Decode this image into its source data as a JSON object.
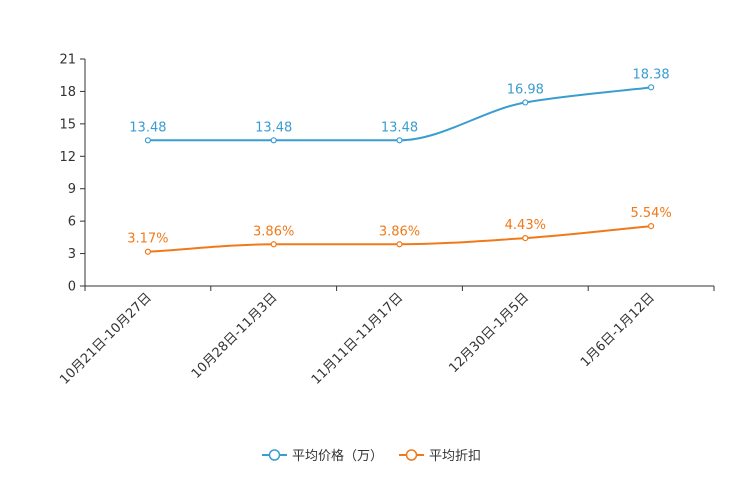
{
  "chart_data": {
    "type": "line",
    "categories": [
      "10月21日-10月27日",
      "10月28日-11月3日",
      "11月11日-11月17日",
      "12月30日-1月5日",
      "1月6日-1月12日"
    ],
    "series": [
      {
        "name": "平均价格（万）",
        "values": [
          13.48,
          13.48,
          13.48,
          16.98,
          18.38
        ],
        "labels": [
          "13.48",
          "13.48",
          "13.48",
          "16.98",
          "18.38"
        ],
        "color": "#3a9dd0"
      },
      {
        "name": "平均折扣",
        "values": [
          3.17,
          3.86,
          3.86,
          4.43,
          5.54
        ],
        "labels": [
          "3.17%",
          "3.86%",
          "3.86%",
          "4.43%",
          "5.54%"
        ],
        "color": "#f07a1a"
      }
    ],
    "yticks": [
      "0",
      "3",
      "6",
      "9",
      "12",
      "15",
      "18",
      "21"
    ],
    "ylim": [
      0,
      21
    ],
    "title": "",
    "xlabel": "",
    "ylabel": "",
    "legend_position": "bottom-center",
    "grid": false
  }
}
